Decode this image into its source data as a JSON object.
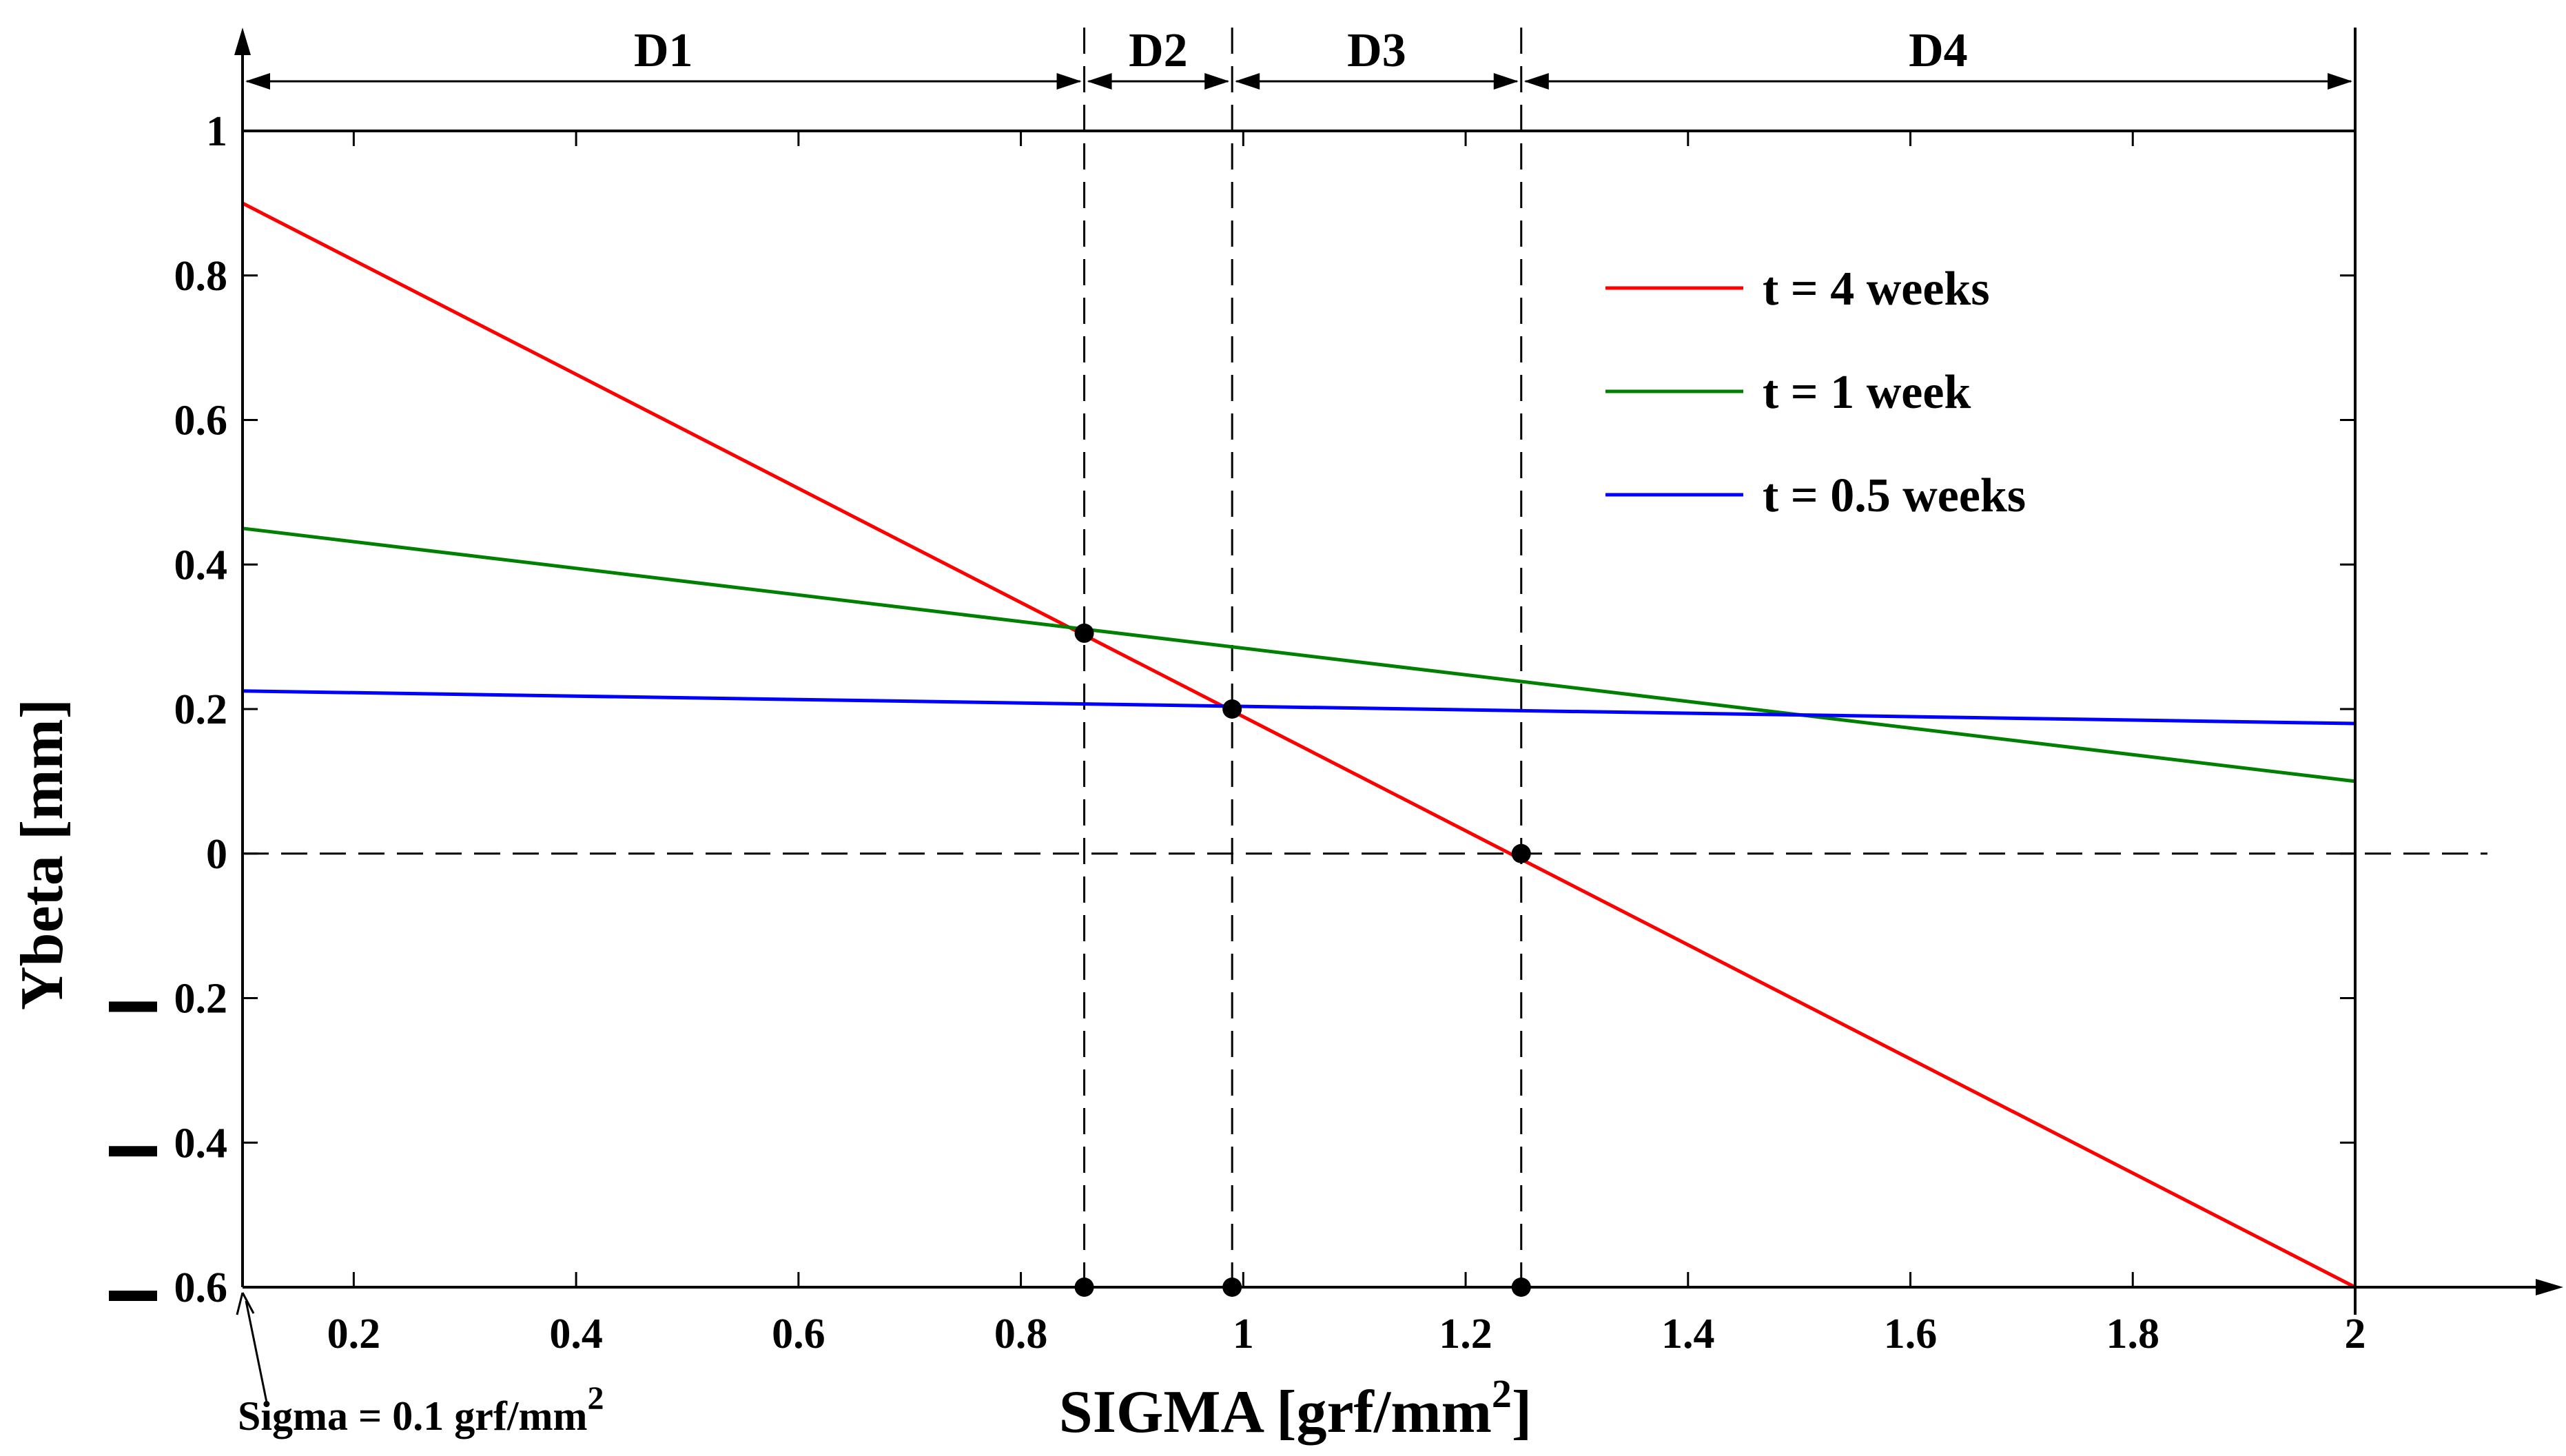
{
  "chart_data": {
    "type": "line",
    "xlabel": "SIGMA [grf/mm",
    "xlabel_sup": "2",
    "xlabel_close": "]",
    "ylabel": "Ybeta [mm]",
    "xlim": [
      0.1,
      2.13
    ],
    "ylim": [
      -0.6,
      1
    ],
    "x_ticks": [
      0.2,
      0.4,
      0.6,
      0.8,
      1,
      1.2,
      1.4,
      1.6,
      1.8,
      2
    ],
    "x_tick_labels": [
      "0.2",
      "0.4",
      "0.6",
      "0.8",
      "1",
      "1.2",
      "1.4",
      "1.6",
      "1.8",
      "2"
    ],
    "y_ticks": [
      1,
      0.8,
      0.6,
      0.4,
      0.2,
      0,
      -0.2,
      -0.4,
      -0.6
    ],
    "y_tick_labels": [
      "1",
      "0.8",
      "0.6",
      "0.4",
      "0.2",
      "0",
      "0.2",
      "0.4",
      "0.6"
    ],
    "negative_marker_ticks": [
      -0.2,
      -0.4,
      -0.6
    ],
    "series": [
      {
        "name": "t = 4 weeks",
        "color": "#ff0000",
        "x": [
          0.1,
          2.0
        ],
        "y": [
          0.9,
          -0.6
        ]
      },
      {
        "name": "t = 1 week",
        "color": "#008000",
        "x": [
          0.1,
          2.0
        ],
        "y": [
          0.45,
          0.1
        ]
      },
      {
        "name": "t = 0.5 weeks",
        "color": "#0000ff",
        "x": [
          0.1,
          2.0
        ],
        "y": [
          0.225,
          0.18
        ]
      }
    ],
    "legend_position": "top-right",
    "reference_points": [
      {
        "x": 0.857,
        "y": 0.305
      },
      {
        "x": 0.99,
        "y": 0.2
      },
      {
        "x": 1.25,
        "y": 0.0
      }
    ],
    "vertical_guides": [
      0.857,
      0.99,
      1.25
    ],
    "horizontal_guide": 0,
    "regions": [
      {
        "label": "D1",
        "from": 0.1,
        "to": 0.857
      },
      {
        "label": "D2",
        "from": 0.857,
        "to": 0.99
      },
      {
        "label": "D3",
        "from": 0.99,
        "to": 1.25
      },
      {
        "label": "D4",
        "from": 1.25,
        "to": 2.0
      }
    ],
    "annotation": {
      "text": "Sigma = 0.1 grf/mm",
      "sup": "2",
      "points_to_x": 0.1
    }
  }
}
